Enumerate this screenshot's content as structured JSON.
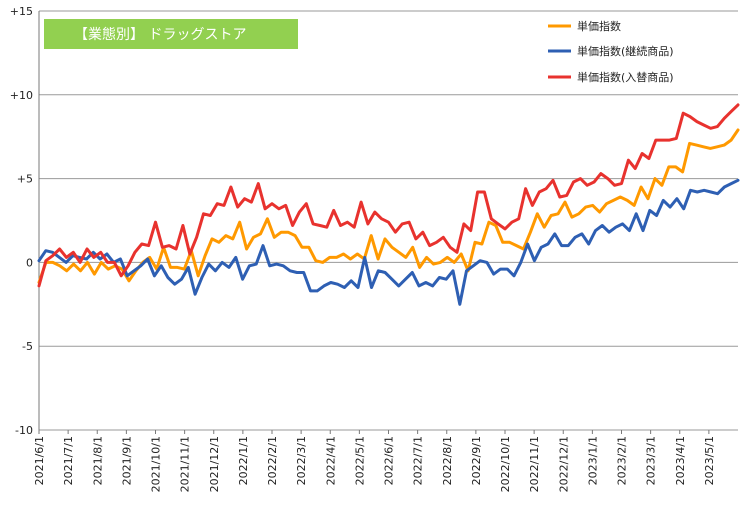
{
  "chart_data": {
    "type": "line",
    "title": "【業態別】 ドラッグストア",
    "title_bg": "#92D050",
    "ylim": [
      -10,
      15
    ],
    "y_ticks": [
      15,
      10,
      5,
      0,
      -5,
      -10
    ],
    "y_tick_labels": [
      "+15",
      "+10",
      "+5",
      "0",
      "-5",
      "-10"
    ],
    "grid": "horizontal",
    "legend_position": "top-right",
    "x_tick_labels": [
      "2021/6/1",
      "2021/7/1",
      "2021/8/1",
      "2021/9/1",
      "2021/10/1",
      "2021/11/1",
      "2021/12/1",
      "2022/1/1",
      "2022/2/1",
      "2022/3/1",
      "2022/4/1",
      "2022/5/1",
      "2022/6/1",
      "2022/7/1",
      "2022/8/1",
      "2022/9/1",
      "2022/10/1",
      "2022/11/1",
      "2022/12/1",
      "2023/1/1",
      "2023/2/1",
      "2023/3/1",
      "2023/4/1",
      "2023/5/1"
    ],
    "series": [
      {
        "name": "単価指数",
        "color": "#FF9900",
        "values": [
          -1.2,
          0.0,
          0.0,
          -0.2,
          -0.5,
          -0.1,
          -0.5,
          0.0,
          -0.7,
          0.0,
          -0.4,
          -0.2,
          -0.4,
          -1.1,
          -0.5,
          0.0,
          0.3,
          -0.4,
          0.9,
          -0.3,
          -0.3,
          -0.4,
          0.7,
          -0.8,
          0.4,
          1.4,
          1.2,
          1.6,
          1.4,
          2.4,
          0.8,
          1.5,
          1.7,
          2.6,
          1.5,
          1.8,
          1.8,
          1.6,
          0.9,
          0.9,
          0.1,
          0.0,
          0.3,
          0.3,
          0.5,
          0.2,
          0.5,
          0.2,
          1.6,
          0.2,
          1.4,
          0.9,
          0.6,
          0.3,
          0.9,
          -0.3,
          0.3,
          -0.1,
          0.0,
          0.3,
          0.0,
          0.5,
          -0.5,
          1.2,
          1.1,
          2.4,
          2.2,
          1.2,
          1.2,
          1.0,
          0.8,
          1.8,
          2.9,
          2.1,
          2.8,
          2.9,
          3.6,
          2.7,
          2.9,
          3.3,
          3.4,
          3.0,
          3.5,
          3.7,
          3.9,
          3.7,
          3.4,
          4.5,
          3.8,
          5.0,
          4.6,
          5.7,
          5.7,
          5.4,
          7.1,
          7.0,
          6.9,
          6.8,
          6.9,
          7.0,
          7.3,
          7.9
        ]
      },
      {
        "name": "単価指数(継続商品)",
        "color": "#2E5FB3",
        "values": [
          0.1,
          0.7,
          0.6,
          0.3,
          0.0,
          0.4,
          0.3,
          0.2,
          0.6,
          0.2,
          0.5,
          0.0,
          0.2,
          -0.8,
          -0.5,
          -0.2,
          0.2,
          -0.8,
          -0.2,
          -0.9,
          -1.3,
          -1.0,
          -0.3,
          -1.9,
          -0.9,
          -0.1,
          -0.5,
          0.0,
          -0.3,
          0.3,
          -1.0,
          -0.2,
          -0.1,
          1.0,
          -0.2,
          -0.1,
          -0.2,
          -0.5,
          -0.6,
          -0.6,
          -1.7,
          -1.7,
          -1.4,
          -1.2,
          -1.3,
          -1.5,
          -1.1,
          -1.5,
          0.3,
          -1.5,
          -0.5,
          -0.6,
          -1.0,
          -1.4,
          -1.0,
          -0.6,
          -1.4,
          -1.2,
          -1.4,
          -0.9,
          -1.0,
          -0.5,
          -2.5,
          -0.5,
          -0.2,
          0.1,
          0.0,
          -0.7,
          -0.4,
          -0.4,
          -0.8,
          0.0,
          1.1,
          0.1,
          0.9,
          1.1,
          1.7,
          1.0,
          1.0,
          1.5,
          1.7,
          1.1,
          1.9,
          2.2,
          1.8,
          2.1,
          2.3,
          1.9,
          2.9,
          1.9,
          3.1,
          2.8,
          3.7,
          3.3,
          3.8,
          3.2,
          4.3,
          4.2,
          4.3,
          4.2,
          4.1,
          4.5,
          4.7,
          4.9
        ]
      },
      {
        "name": "単価指数(入替商品)",
        "color": "#E8322E",
        "values": [
          -1.4,
          0.1,
          0.4,
          0.8,
          0.3,
          0.6,
          0.0,
          0.8,
          0.3,
          0.6,
          0.0,
          0.0,
          -0.8,
          -0.2,
          0.6,
          1.1,
          1.0,
          2.4,
          0.9,
          1.0,
          0.8,
          2.2,
          0.5,
          1.5,
          2.9,
          2.8,
          3.5,
          3.4,
          4.5,
          3.3,
          3.8,
          3.6,
          4.7,
          3.2,
          3.5,
          3.2,
          3.4,
          2.2,
          3.0,
          3.5,
          2.3,
          2.2,
          2.1,
          3.1,
          2.2,
          2.4,
          2.1,
          3.6,
          2.3,
          3.0,
          2.6,
          2.4,
          1.8,
          2.3,
          2.4,
          1.4,
          1.8,
          1.0,
          1.2,
          1.5,
          0.9,
          0.6,
          2.3,
          1.9,
          4.2,
          4.2,
          2.6,
          2.3,
          2.0,
          2.4,
          2.6,
          4.4,
          3.4,
          4.2,
          4.4,
          4.9,
          3.9,
          4.0,
          4.8,
          5.0,
          4.6,
          4.8,
          5.3,
          5.0,
          4.6,
          4.7,
          6.1,
          5.6,
          6.5,
          6.2,
          7.3,
          7.3,
          7.3,
          7.4,
          8.9,
          8.7,
          8.4,
          8.2,
          8.0,
          8.1,
          8.6,
          9.0,
          9.4
        ]
      }
    ]
  }
}
